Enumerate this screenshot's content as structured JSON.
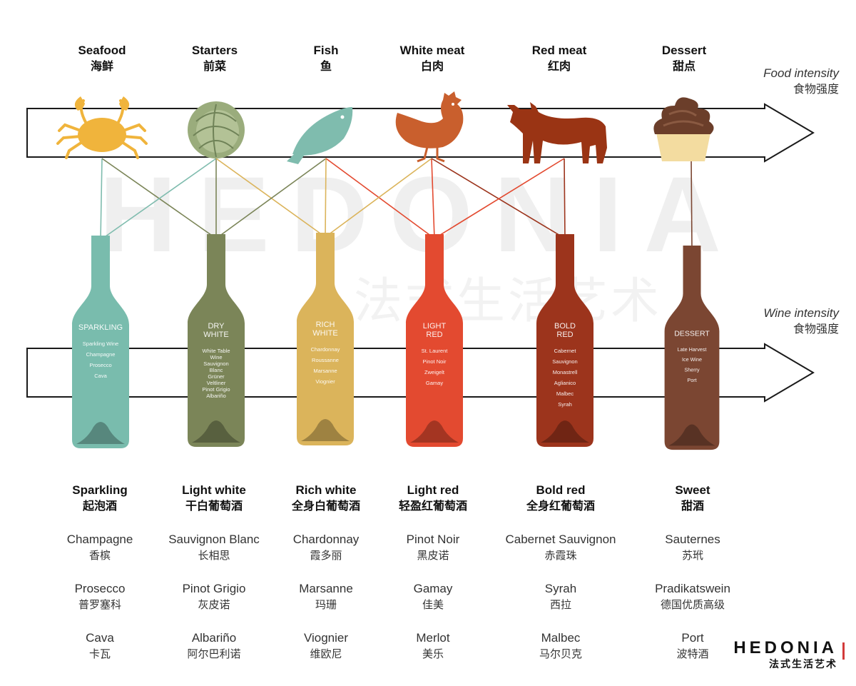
{
  "food_intensity": {
    "label_en": "Food intensity",
    "label_zh": "食物强度"
  },
  "wine_intensity": {
    "label_en": "Wine intensity",
    "label_zh": "食物强度"
  },
  "foods": [
    {
      "en": "Seafood",
      "zh": "海鲜",
      "icon": "crab-icon",
      "color": "#f0b43c"
    },
    {
      "en": "Starters",
      "zh": "前菜",
      "icon": "cabbage-icon",
      "color": "#9aac7c"
    },
    {
      "en": "Fish",
      "zh": "鱼",
      "icon": "fish-icon",
      "color": "#7fbcae"
    },
    {
      "en": "White meat",
      "zh": "白肉",
      "icon": "chicken-icon",
      "color": "#c95f2d"
    },
    {
      "en": "Red meat",
      "zh": "红肉",
      "icon": "cow-icon",
      "color": "#9a3414"
    },
    {
      "en": "Dessert",
      "zh": "甜点",
      "icon": "cupcake-icon",
      "color": "#6b3e2a"
    }
  ],
  "bottles": [
    {
      "title": [
        "SPARKLING"
      ],
      "grapes": [
        "Sparkling Wine",
        "Champagne",
        "Prosecco",
        "Cava"
      ],
      "color": "#79bcad"
    },
    {
      "title": [
        "DRY",
        "WHITE"
      ],
      "grapes": [
        "White Table",
        "Wine",
        "Sauvignon",
        "Blanc",
        "Grüner",
        "Veltliner",
        "Pinot Grigio",
        "Albariño"
      ],
      "color": "#7b8558"
    },
    {
      "title": [
        "RICH",
        "WHITE"
      ],
      "grapes": [
        "Chardonnay",
        "Roussanne",
        "Marsanne",
        "Viognier"
      ],
      "color": "#dbb45b"
    },
    {
      "title": [
        "LIGHT",
        "RED"
      ],
      "grapes": [
        "St. Laurent",
        "Pinot Noir",
        "Zweigelt",
        "Gamay"
      ],
      "color": "#e34a30"
    },
    {
      "title": [
        "BOLD",
        "RED"
      ],
      "grapes": [
        "Cabernet",
        "Sauvignon",
        "Monastrell",
        "Aglianico",
        "Malbec",
        "Syrah"
      ],
      "color": "#9c341c"
    },
    {
      "title": [
        "DESSERT"
      ],
      "grapes": [
        "Late Harvest",
        "Ice Wine",
        "Sherry",
        "Port"
      ],
      "color": "#7b4632"
    }
  ],
  "columns": [
    {
      "en": "Sparkling",
      "zh": "起泡酒",
      "wines": [
        {
          "en": "Champagne",
          "zh": "香槟"
        },
        {
          "en": "Prosecco",
          "zh": "普罗塞科"
        },
        {
          "en": "Cava",
          "zh": "卡瓦"
        }
      ]
    },
    {
      "en": "Light white",
      "zh": "干白葡萄酒",
      "wines": [
        {
          "en": "Sauvignon Blanc",
          "zh": "长相思"
        },
        {
          "en": "Pinot Grigio",
          "zh": "灰皮诺"
        },
        {
          "en": "Albariño",
          "zh": "阿尔巴利诺"
        }
      ]
    },
    {
      "en": "Rich white",
      "zh": "全身白葡萄酒",
      "wines": [
        {
          "en": "Chardonnay",
          "zh": "霞多丽"
        },
        {
          "en": "Marsanne",
          "zh": "玛珊"
        },
        {
          "en": "Viognier",
          "zh": "维欧尼"
        }
      ]
    },
    {
      "en": "Light red",
      "zh": "轻盈红葡萄酒",
      "wines": [
        {
          "en": "Pinot Noir",
          "zh": "黑皮诺"
        },
        {
          "en": "Gamay",
          "zh": "佳美"
        },
        {
          "en": "Merlot",
          "zh": "美乐"
        }
      ]
    },
    {
      "en": "Bold red",
      "zh": "全身红葡萄酒",
      "wines": [
        {
          "en": "Cabernet Sauvignon",
          "zh": "赤霞珠"
        },
        {
          "en": "Syrah",
          "zh": "西拉"
        },
        {
          "en": "Malbec",
          "zh": "马尔贝克"
        }
      ]
    },
    {
      "en": "Sweet",
      "zh": "甜酒",
      "wines": [
        {
          "en": "Sauternes",
          "zh": "苏玳"
        },
        {
          "en": "Pradikatswein",
          "zh": "德国优质高级"
        },
        {
          "en": "Port",
          "zh": "波特酒"
        }
      ]
    }
  ],
  "links": [
    {
      "from": 0,
      "to": 0,
      "color": "#7fbcae"
    },
    {
      "from": 0,
      "to": 1,
      "color": "#7b8558"
    },
    {
      "from": 1,
      "to": 0,
      "color": "#7fbcae"
    },
    {
      "from": 1,
      "to": 1,
      "color": "#7b8558"
    },
    {
      "from": 1,
      "to": 2,
      "color": "#dbb45b"
    },
    {
      "from": 2,
      "to": 1,
      "color": "#7b8558"
    },
    {
      "from": 2,
      "to": 2,
      "color": "#dbb45b"
    },
    {
      "from": 2,
      "to": 3,
      "color": "#e34a30"
    },
    {
      "from": 3,
      "to": 2,
      "color": "#dbb45b"
    },
    {
      "from": 3,
      "to": 3,
      "color": "#e34a30"
    },
    {
      "from": 3,
      "to": 4,
      "color": "#9c341c"
    },
    {
      "from": 4,
      "to": 3,
      "color": "#e34a30"
    },
    {
      "from": 4,
      "to": 4,
      "color": "#9c341c"
    },
    {
      "from": 5,
      "to": 5,
      "color": "#7b4632"
    }
  ],
  "watermark": {
    "main": "HEDONIA",
    "sub": "法式生活艺术"
  },
  "brand": {
    "name": "HEDONIA",
    "sub": "法式生活艺术",
    "accent": "#d23b3b"
  }
}
